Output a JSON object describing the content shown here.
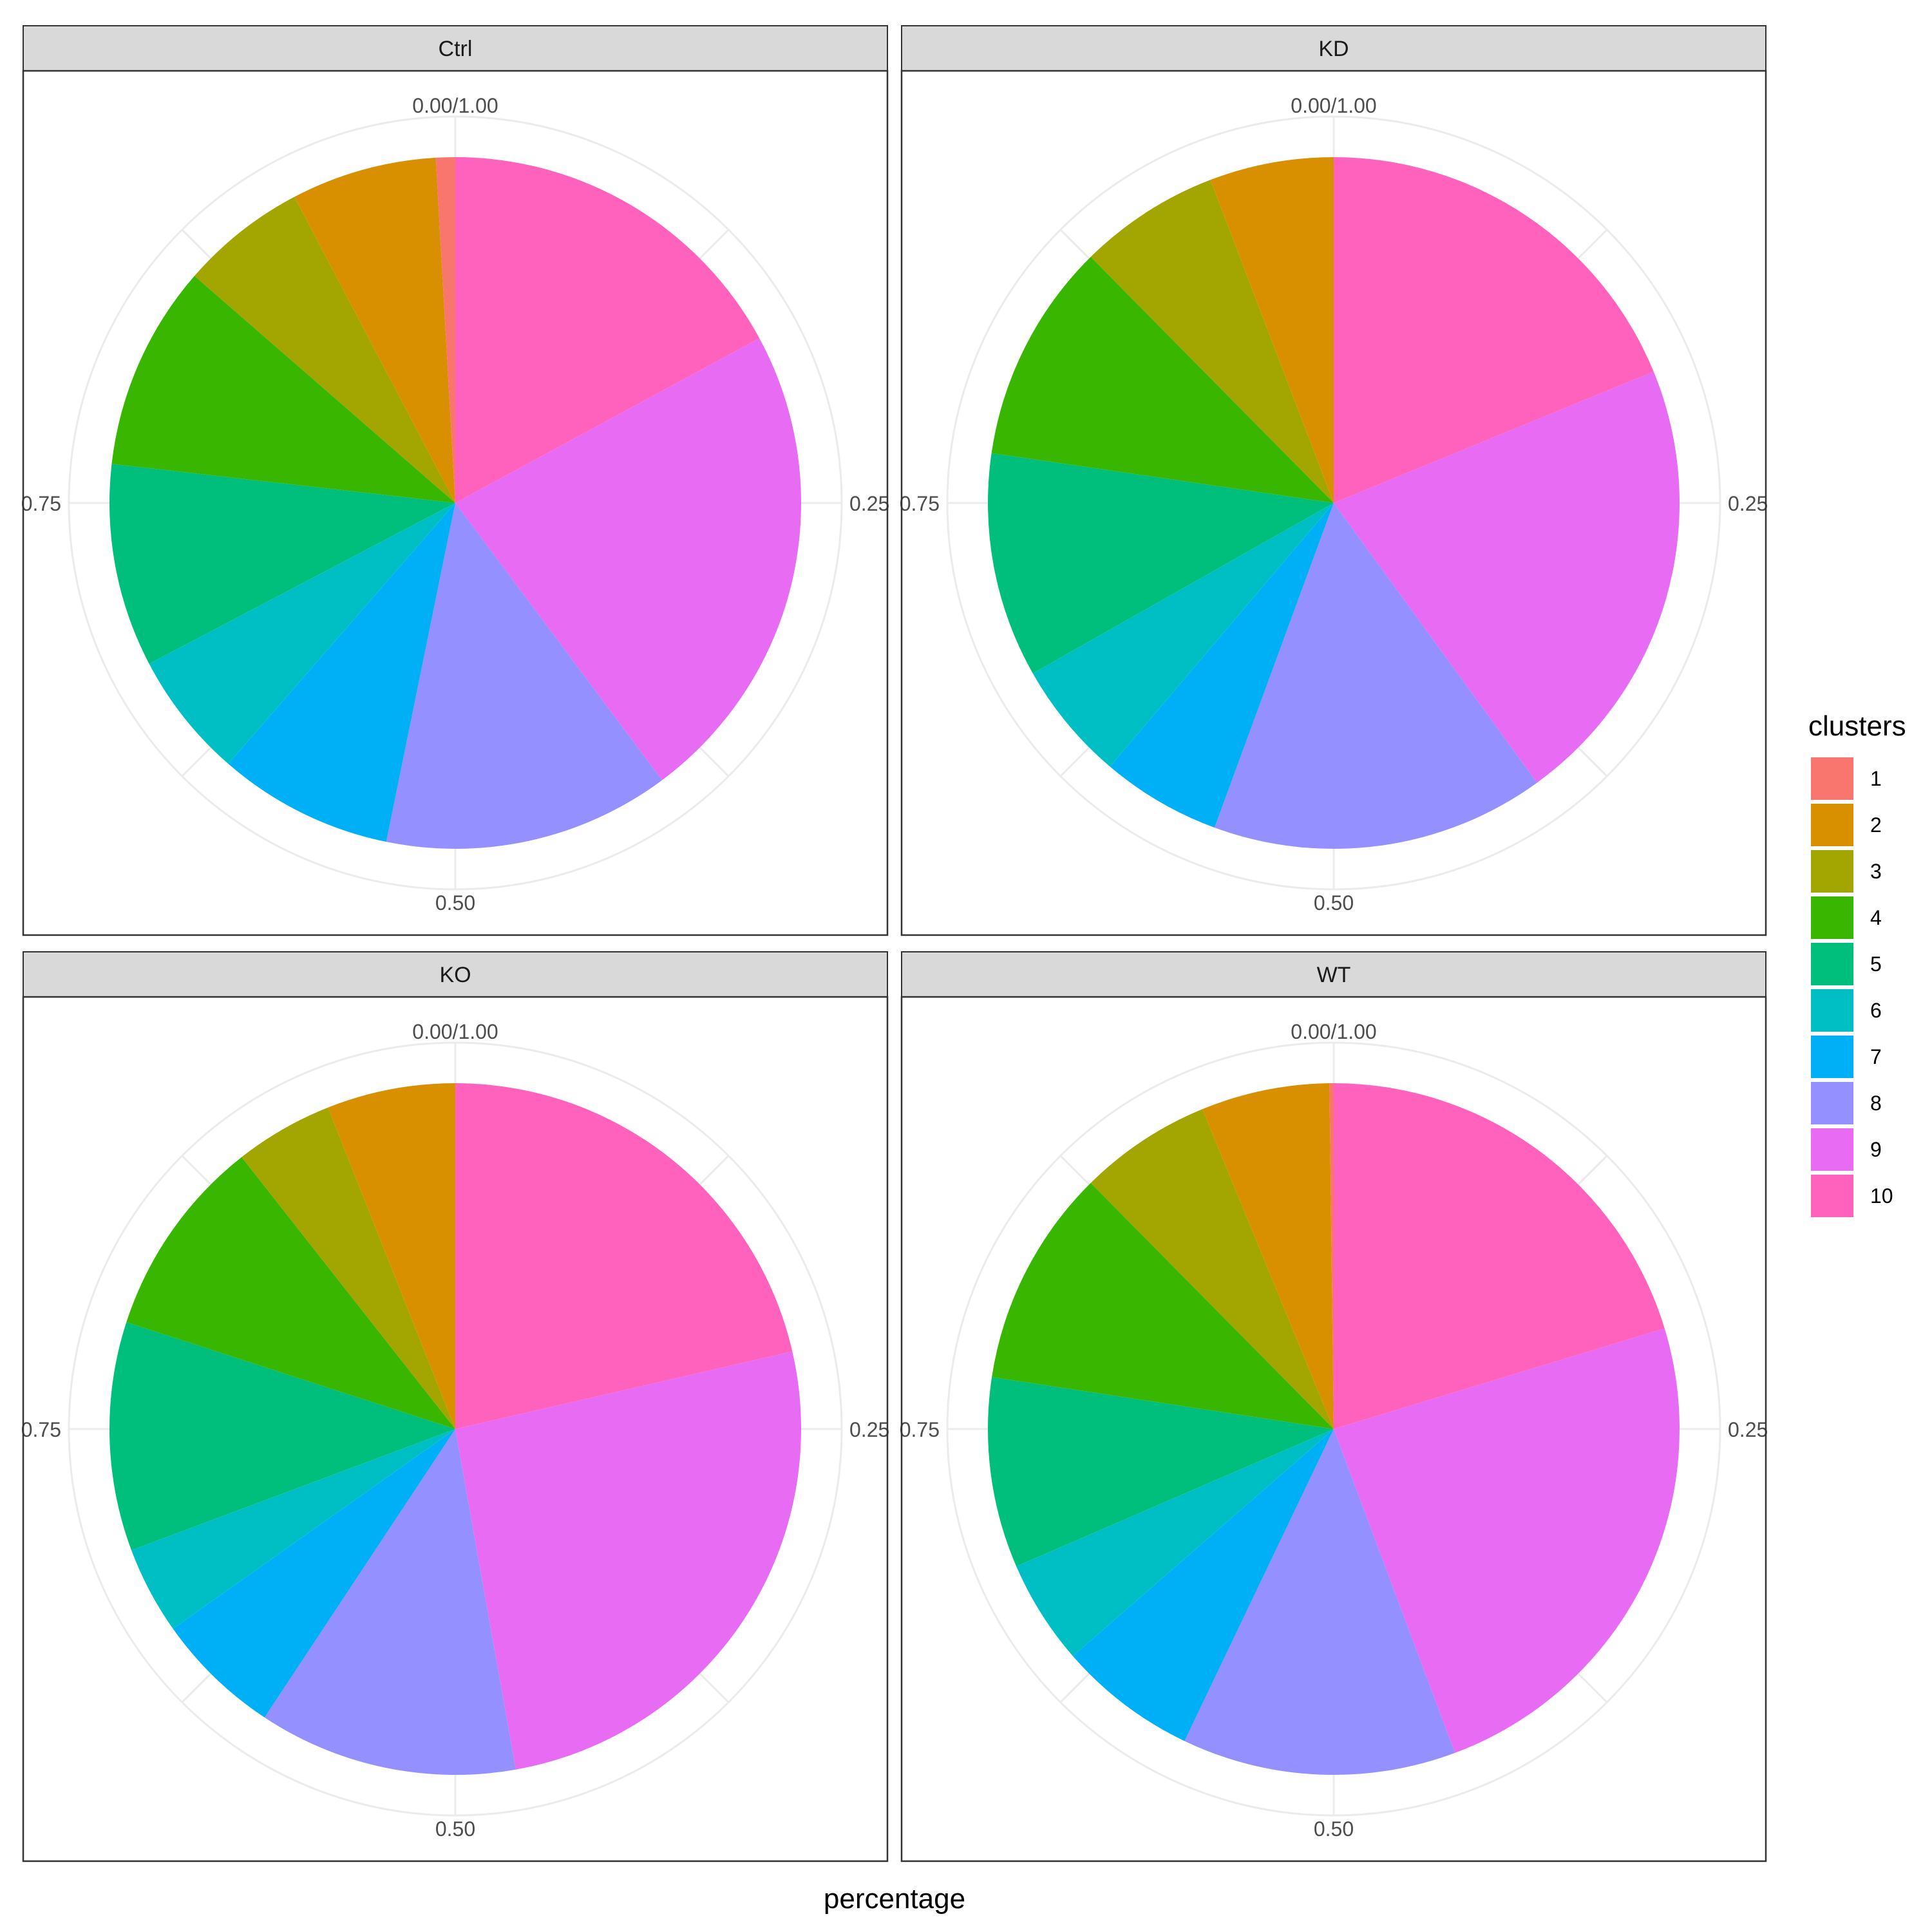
{
  "chart_data": {
    "type": "pie",
    "facet_variable": "",
    "xlabel": "percentage",
    "angular_ticks": [
      "0.00/1.00",
      "0.25",
      "0.50",
      "0.75"
    ],
    "legend": {
      "title": "clusters",
      "placement": "right",
      "items": [
        {
          "label": "1",
          "color": "#F8766D"
        },
        {
          "label": "2",
          "color": "#D89000"
        },
        {
          "label": "3",
          "color": "#A3A500"
        },
        {
          "label": "4",
          "color": "#39B600"
        },
        {
          "label": "5",
          "color": "#00BF7D"
        },
        {
          "label": "6",
          "color": "#00BFC4"
        },
        {
          "label": "7",
          "color": "#00B0F6"
        },
        {
          "label": "8",
          "color": "#9590FF"
        },
        {
          "label": "9",
          "color": "#E76BF3"
        },
        {
          "label": "10",
          "color": "#FF62BC"
        }
      ]
    },
    "panels": [
      {
        "title": "Ctrl",
        "series": [
          {
            "cluster": "10",
            "value": 0.171
          },
          {
            "cluster": "9",
            "value": 0.227
          },
          {
            "cluster": "8",
            "value": 0.134
          },
          {
            "cluster": "7",
            "value": 0.082
          },
          {
            "cluster": "6",
            "value": 0.059
          },
          {
            "cluster": "5",
            "value": 0.095
          },
          {
            "cluster": "4",
            "value": 0.096
          },
          {
            "cluster": "3",
            "value": 0.059
          },
          {
            "cluster": "2",
            "value": 0.068
          },
          {
            "cluster": "1",
            "value": 0.009
          }
        ]
      },
      {
        "title": "KD",
        "series": [
          {
            "cluster": "10",
            "value": 0.188
          },
          {
            "cluster": "9",
            "value": 0.212
          },
          {
            "cluster": "8",
            "value": 0.156
          },
          {
            "cluster": "7",
            "value": 0.056
          },
          {
            "cluster": "6",
            "value": 0.056
          },
          {
            "cluster": "5",
            "value": 0.105
          },
          {
            "cluster": "4",
            "value": 0.103
          },
          {
            "cluster": "3",
            "value": 0.066
          },
          {
            "cluster": "2",
            "value": 0.058
          },
          {
            "cluster": "1",
            "value": 0.0
          }
        ]
      },
      {
        "title": "KO",
        "series": [
          {
            "cluster": "10",
            "value": 0.214
          },
          {
            "cluster": "9",
            "value": 0.258
          },
          {
            "cluster": "8",
            "value": 0.121
          },
          {
            "cluster": "7",
            "value": 0.059
          },
          {
            "cluster": "6",
            "value": 0.041
          },
          {
            "cluster": "5",
            "value": 0.107
          },
          {
            "cluster": "4",
            "value": 0.094
          },
          {
            "cluster": "3",
            "value": 0.046
          },
          {
            "cluster": "2",
            "value": 0.06
          },
          {
            "cluster": "1",
            "value": 0.0
          }
        ]
      },
      {
        "title": "WT",
        "series": [
          {
            "cluster": "10",
            "value": 0.203
          },
          {
            "cluster": "9",
            "value": 0.24
          },
          {
            "cluster": "8",
            "value": 0.128
          },
          {
            "cluster": "7",
            "value": 0.065
          },
          {
            "cluster": "6",
            "value": 0.049
          },
          {
            "cluster": "5",
            "value": 0.089
          },
          {
            "cluster": "4",
            "value": 0.102
          },
          {
            "cluster": "3",
            "value": 0.062
          },
          {
            "cluster": "2",
            "value": 0.06
          },
          {
            "cluster": "1",
            "value": 0.002
          }
        ]
      }
    ]
  }
}
